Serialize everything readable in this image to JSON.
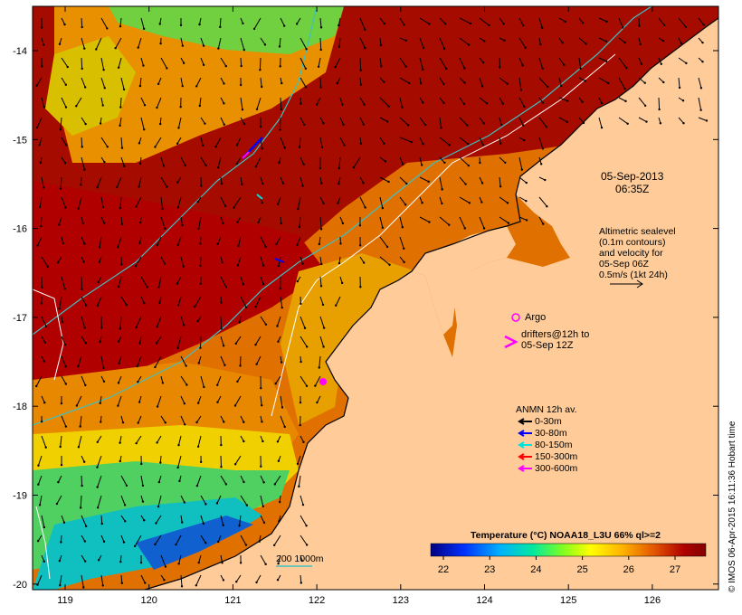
{
  "datetime": {
    "date": "05-Sep-2013",
    "time": "06:35Z"
  },
  "sealevel_info": [
    "Altimetric sealevel",
    "(0.1m contours)",
    "and velocity for",
    "05-Sep 06Z",
    "0.5m/s (1kt 24h)"
  ],
  "argo_label": "Argo",
  "drifters_label": [
    "drifters@12h to",
    "05-Sep 12Z"
  ],
  "anmn": {
    "title": "ANMN 12h av.",
    "items": [
      {
        "label": "0-30m",
        "color": "#000000"
      },
      {
        "label": "30-80m",
        "color": "#0000ff"
      },
      {
        "label": "80-150m",
        "color": "#00e0e0"
      },
      {
        "label": "150-300m",
        "color": "#ff0000"
      },
      {
        "label": "300-600m",
        "color": "#ff00ff"
      }
    ]
  },
  "colorbar": {
    "title": "Temperature (°C) NOAA18_L3U 66% ql>=2",
    "ticks": [
      "22",
      "23",
      "24",
      "25",
      "26",
      "27"
    ]
  },
  "isobath_label": "200  1000m",
  "credit": "© IMOS 06-Apr-2015 16:11:36 Hobart time",
  "axes": {
    "x_ticks": [
      "119",
      "120",
      "121",
      "122",
      "123",
      "124",
      "125",
      "126"
    ],
    "y_ticks": [
      "-14",
      "-15",
      "-16",
      "-17",
      "-18",
      "-19",
      "-20"
    ]
  },
  "colors": {
    "land": "#ffcc99",
    "ocean_hot": "#a00000",
    "ocean_warm": "#e07000"
  }
}
